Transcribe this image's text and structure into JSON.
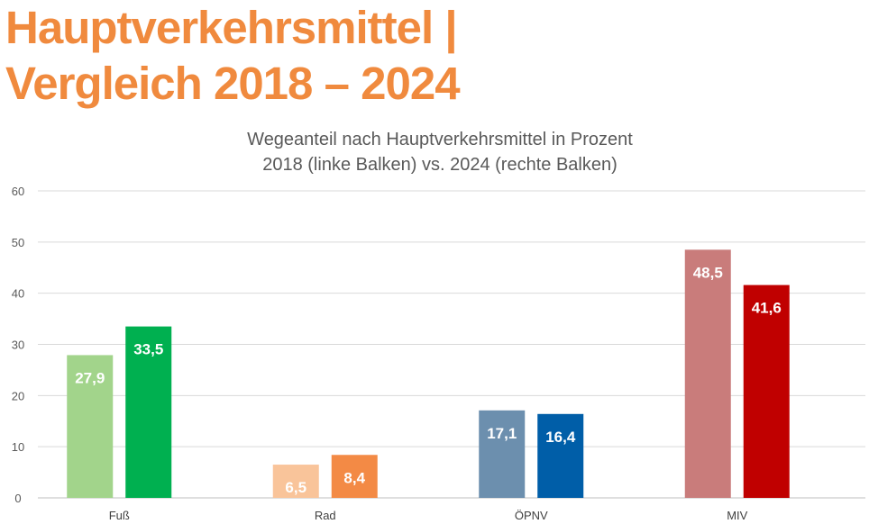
{
  "page": {
    "title_line1": "Hauptverkehrsmittel |",
    "title_line2": "Vergleich 2018 – 2024"
  },
  "chart_data": {
    "type": "bar",
    "title": "Wegeanteil nach Hauptverkehrsmittel in Prozent",
    "subtitle": "2018 (linke Balken) vs. 2024 (rechte Balken)",
    "categories": [
      "Fuß",
      "Rad",
      "ÖPNV",
      "MIV"
    ],
    "ylim": [
      0,
      60
    ],
    "yticks": [
      0,
      10,
      20,
      30,
      40,
      50,
      60
    ],
    "grid": true,
    "legend": "none",
    "series": [
      {
        "values": [
          27.9,
          6.5,
          17.1,
          48.5
        ],
        "labels": [
          "27,9",
          "6,5",
          "17,1",
          "48,5"
        ],
        "colors": [
          "#a2d48b",
          "#f9c49a",
          "#6c8fae",
          "#c97c7b"
        ]
      },
      {
        "values": [
          33.5,
          8.4,
          16.4,
          41.6
        ],
        "labels": [
          "33,5",
          "8,4",
          "16,4",
          "41,6"
        ],
        "colors": [
          "#00b050",
          "#f38a45",
          "#005ea8",
          "#c00000"
        ]
      }
    ]
  }
}
